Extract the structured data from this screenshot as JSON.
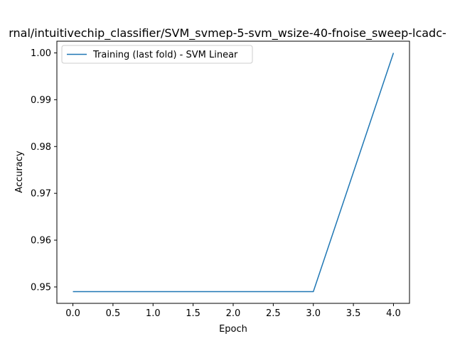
{
  "chart_data": {
    "type": "line",
    "title": "rnal/intuitivechip_classifier/SVM_svmep-5-svm_wsize-40-fnoise_sweep-lcadc-",
    "xlabel": "Epoch",
    "ylabel": "Accuracy",
    "xlim": [
      -0.2,
      4.2
    ],
    "ylim": [
      0.9465,
      1.0025
    ],
    "x_ticks": [
      0.0,
      0.5,
      1.0,
      1.5,
      2.0,
      2.5,
      3.0,
      3.5,
      4.0
    ],
    "x_tick_labels": [
      "0.0",
      "0.5",
      "1.0",
      "1.5",
      "2.0",
      "2.5",
      "3.0",
      "3.5",
      "4.0"
    ],
    "y_ticks": [
      0.95,
      0.96,
      0.97,
      0.98,
      0.99,
      1.0
    ],
    "y_tick_labels": [
      "0.95",
      "0.96",
      "0.97",
      "0.98",
      "0.99",
      "1.00"
    ],
    "grid": false,
    "legend_position": "top-left",
    "series": [
      {
        "name": "Training (last fold) - SVM Linear",
        "color": "#1f77b4",
        "x": [
          0,
          1,
          2,
          3,
          4
        ],
        "y": [
          0.949,
          0.949,
          0.949,
          0.949,
          1.0
        ]
      }
    ]
  }
}
